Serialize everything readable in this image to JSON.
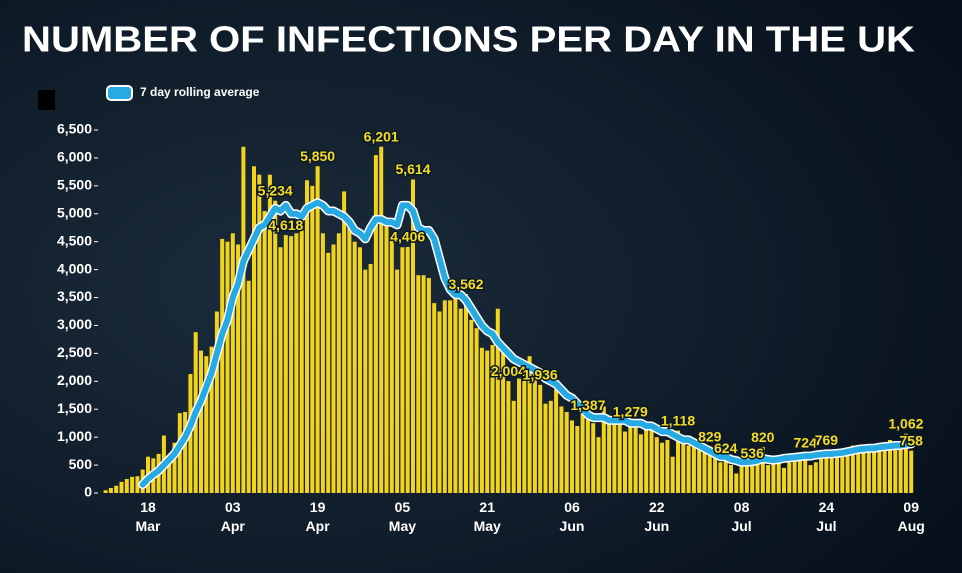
{
  "chart_data": {
    "type": "bar",
    "title": "NUMBER OF INFECTIONS PER DAY IN THE UK",
    "categories": [
      null,
      null,
      null,
      null,
      null,
      null,
      null,
      null,
      "18 Mar",
      null,
      null,
      null,
      null,
      null,
      null,
      null,
      null,
      null,
      null,
      null,
      null,
      null,
      null,
      null,
      "03 Apr",
      null,
      null,
      null,
      null,
      null,
      null,
      null,
      null,
      null,
      null,
      null,
      null,
      null,
      null,
      null,
      "19 Apr",
      null,
      null,
      null,
      null,
      null,
      null,
      null,
      null,
      null,
      null,
      null,
      null,
      null,
      null,
      null,
      "05 May",
      null,
      null,
      null,
      null,
      null,
      null,
      null,
      null,
      null,
      null,
      null,
      null,
      null,
      null,
      null,
      "21 May",
      null,
      null,
      null,
      null,
      null,
      null,
      null,
      null,
      null,
      null,
      null,
      null,
      null,
      null,
      null,
      "06 Jun",
      null,
      null,
      null,
      null,
      null,
      null,
      null,
      null,
      null,
      null,
      null,
      null,
      null,
      null,
      null,
      "22 Jun",
      null,
      null,
      null,
      null,
      null,
      null,
      null,
      null,
      null,
      null,
      null,
      null,
      null,
      null,
      null,
      "08 Jul",
      null,
      null,
      null,
      null,
      null,
      null,
      null,
      null,
      null,
      null,
      null,
      null,
      null,
      null,
      null,
      "24 Jul",
      null,
      null,
      null,
      null,
      null,
      null,
      null,
      null,
      null,
      null,
      null,
      null,
      null,
      null,
      null,
      "09 Aug"
    ],
    "values": [
      50,
      90,
      130,
      200,
      250,
      290,
      300,
      420,
      650,
      620,
      700,
      1030,
      680,
      900,
      1430,
      1450,
      2130,
      2880,
      2550,
      2450,
      2620,
      3250,
      4550,
      4500,
      4650,
      4450,
      6200,
      3800,
      5850,
      5700,
      5050,
      5700,
      5234,
      4400,
      4618,
      4600,
      4650,
      4700,
      5600,
      5500,
      5850,
      4650,
      4300,
      4450,
      4650,
      5400,
      4850,
      4500,
      4400,
      4000,
      4100,
      6050,
      6201,
      4850,
      4550,
      4000,
      4400,
      4406,
      5614,
      3900,
      3900,
      3850,
      3400,
      3250,
      3450,
      3450,
      3500,
      3300,
      3562,
      3100,
      2950,
      2600,
      2550,
      2650,
      3300,
      2550,
      2004,
      1650,
      2050,
      2300,
      2450,
      2250,
      1936,
      1600,
      1650,
      1850,
      1550,
      1450,
      1300,
      1200,
      1600,
      1387,
      1250,
      1000,
      1550,
      1300,
      1250,
      1250,
      1100,
      1279,
      1200,
      1050,
      1200,
      1250,
      1000,
      900,
      950,
      650,
      1118,
      950,
      850,
      900,
      800,
      750,
      829,
      650,
      550,
      624,
      500,
      350,
      550,
      600,
      536,
      650,
      820,
      500,
      550,
      600,
      450,
      550,
      650,
      700,
      724,
      500,
      550,
      650,
      769,
      650,
      700,
      650,
      750,
      850,
      800,
      850,
      750,
      850,
      850,
      900,
      950,
      800,
      800,
      1062,
      758
    ],
    "value_labels": [
      null,
      null,
      null,
      null,
      null,
      null,
      null,
      null,
      null,
      null,
      null,
      null,
      null,
      null,
      null,
      null,
      null,
      null,
      null,
      null,
      null,
      null,
      null,
      null,
      null,
      null,
      null,
      null,
      null,
      null,
      null,
      null,
      "5,234",
      null,
      "4,618",
      null,
      null,
      null,
      null,
      null,
      "5,850",
      null,
      null,
      null,
      null,
      null,
      null,
      null,
      null,
      null,
      null,
      null,
      "6,201",
      null,
      null,
      null,
      null,
      "4,406",
      "5,614",
      null,
      null,
      null,
      null,
      null,
      null,
      null,
      null,
      null,
      "3,562",
      null,
      null,
      null,
      null,
      null,
      null,
      null,
      "2,004",
      null,
      null,
      null,
      null,
      null,
      "1,936",
      null,
      null,
      null,
      null,
      null,
      null,
      null,
      null,
      "1,387",
      null,
      null,
      null,
      null,
      null,
      null,
      null,
      "1,279",
      null,
      null,
      null,
      null,
      null,
      null,
      null,
      null,
      "1,118",
      null,
      null,
      null,
      null,
      null,
      "829",
      null,
      null,
      "624",
      null,
      null,
      null,
      null,
      "536",
      null,
      "820",
      null,
      null,
      null,
      null,
      null,
      null,
      null,
      "724",
      null,
      null,
      null,
      "769",
      null,
      null,
      null,
      null,
      null,
      null,
      null,
      null,
      null,
      null,
      null,
      null,
      null,
      null,
      "1,062",
      "758"
    ],
    "color": "#f2d41e",
    "line": {
      "name": "7 day rolling average",
      "color": "#27a9e1",
      "values": [
        null,
        null,
        null,
        null,
        null,
        null,
        null,
        150,
        250,
        330,
        400,
        500,
        600,
        700,
        850,
        1000,
        1200,
        1450,
        1650,
        1900,
        2150,
        2500,
        2850,
        3100,
        3500,
        3750,
        4150,
        4350,
        4550,
        4750,
        4800,
        4950,
        5100,
        5050,
        5150,
        5000,
        5000,
        4950,
        5100,
        5150,
        5200,
        5150,
        5050,
        5050,
        5000,
        4950,
        4850,
        4700,
        4650,
        4550,
        4750,
        4900,
        4900,
        4850,
        4850,
        4800,
        5150,
        5150,
        5050,
        4750,
        4700,
        4700,
        4550,
        4200,
        3850,
        3650,
        3550,
        3550,
        3450,
        3300,
        3150,
        3000,
        2900,
        2850,
        2700,
        2600,
        2500,
        2400,
        2350,
        2300,
        2250,
        2200,
        2150,
        2050,
        2000,
        1950,
        1850,
        1750,
        1700,
        1600,
        1500,
        1400,
        1350,
        1350,
        1350,
        1300,
        1300,
        1300,
        1300,
        1250,
        1250,
        1250,
        1200,
        1200,
        1150,
        1100,
        1100,
        1050,
        1000,
        950,
        950,
        900,
        850,
        800,
        750,
        700,
        650,
        650,
        600,
        580,
        550,
        550,
        560,
        580,
        620,
        600,
        590,
        600,
        620,
        630,
        640,
        650,
        660,
        660,
        680,
        690,
        700,
        700,
        710,
        720,
        740,
        760,
        780,
        790,
        800,
        800,
        820,
        830,
        840,
        850,
        850,
        870,
        880
      ]
    },
    "ylim": [
      0,
      6500
    ],
    "yticks": [
      0,
      500,
      {
        "value": 1000,
        "label": "1,000"
      },
      {
        "value": 1500,
        "label": "1,500"
      },
      {
        "value": 2000,
        "label": "2,000"
      },
      {
        "value": 2500,
        "label": "2,500"
      },
      {
        "value": 3000,
        "label": "3,000"
      },
      {
        "value": 3500,
        "label": "3,500"
      },
      {
        "value": 4000,
        "label": "4,000"
      },
      {
        "value": 4500,
        "label": "4,500"
      },
      {
        "value": 5000,
        "label": "5,000"
      },
      {
        "value": 5500,
        "label": "5,500"
      },
      {
        "value": 6000,
        "label": "6,000"
      },
      {
        "value": 6500,
        "label": "6,500"
      }
    ],
    "grid": false,
    "legend": "top-left"
  }
}
